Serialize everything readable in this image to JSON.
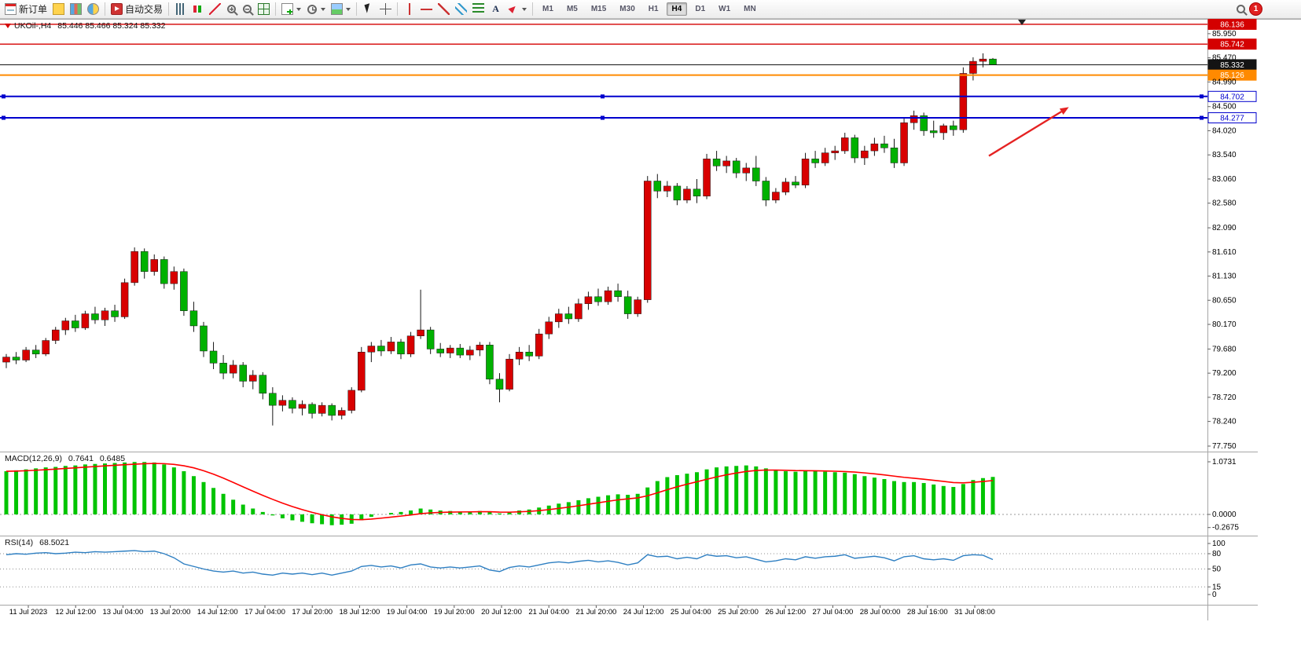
{
  "toolbar": {
    "badge": "1",
    "timeframes": [
      "M1",
      "M5",
      "M15",
      "M30",
      "H1",
      "H4",
      "D1",
      "W1",
      "MN"
    ],
    "active_timeframe": "H4",
    "buttons": [
      {
        "name": "new-order",
        "label": "新订单"
      },
      {
        "name": "chart-profile"
      },
      {
        "name": "market-watch"
      },
      {
        "name": "navigator"
      },
      {
        "type": "sep"
      },
      {
        "name": "autotrade",
        "label": "自动交易"
      },
      {
        "type": "sep"
      },
      {
        "name": "bar-chart"
      },
      {
        "name": "candlestick-chart"
      },
      {
        "name": "line-chart"
      },
      {
        "name": "zoom-in"
      },
      {
        "name": "zoom-out"
      },
      {
        "name": "tile-windows"
      },
      {
        "type": "sep"
      },
      {
        "name": "new-chart",
        "caret": true
      },
      {
        "name": "periods",
        "caret": true
      },
      {
        "name": "templates",
        "caret": true
      },
      {
        "type": "sep"
      },
      {
        "name": "cursor"
      },
      {
        "name": "crosshair"
      },
      {
        "type": "sep"
      },
      {
        "name": "vertical-line"
      },
      {
        "name": "horizontal-line"
      },
      {
        "name": "trendline"
      },
      {
        "name": "equidistant-channel"
      },
      {
        "name": "fibonacci"
      },
      {
        "name": "text",
        "glyph": "A"
      },
      {
        "name": "arrows",
        "caret": true
      },
      {
        "type": "sep"
      }
    ]
  },
  "chart_data": {
    "type": "candlestick",
    "title": "UKOil-,H4",
    "ohlc_text": "85.446 85.466 85.324 85.332",
    "ohlc": {
      "open": "85.446",
      "high": "85.466",
      "low": "85.324",
      "close": "85.332"
    },
    "ylim": [
      77.64,
      86.23
    ],
    "x_range": "11 Jul 2023 - 31 Jul 2023",
    "grid": false,
    "colors": {
      "up": "#d80000",
      "down": "#00b100",
      "wick": "#161616",
      "macd_hist": "#00c400",
      "macd_signal": "#ff0000",
      "rsi": "#2e7fc2",
      "frame": "#a6a6a6",
      "axis_text": "#000000"
    },
    "price_ticks": [
      "85.950",
      "85.470",
      "84.990",
      "84.500",
      "84.020",
      "83.540",
      "83.060",
      "82.580",
      "82.090",
      "81.610",
      "81.130",
      "80.650",
      "80.170",
      "79.680",
      "79.200",
      "78.720",
      "78.240",
      "77.750"
    ],
    "levels": [
      {
        "name": "resistance-line-86136",
        "price": 86.136,
        "label": "86.136",
        "color": "#d40000",
        "tag": "filled",
        "width": 1.4,
        "handles": false
      },
      {
        "name": "resistance-line-85742",
        "price": 85.742,
        "label": "85.742",
        "color": "#d40000",
        "tag": "filled",
        "width": 1.4,
        "handles": false
      },
      {
        "name": "current-price-line",
        "price": 85.332,
        "label": "85.332",
        "color": "#141414",
        "tag": "filled",
        "width": 1,
        "handles": false
      },
      {
        "name": "orange-level-line",
        "price": 85.126,
        "label": "85.126",
        "color": "#ff8a00",
        "tag": "filled",
        "width": 2,
        "handles": false
      },
      {
        "name": "support-line-84702",
        "price": 84.702,
        "label": "84.702",
        "color": "#0000cd",
        "tag": "outline",
        "width": 2,
        "handles": true
      },
      {
        "name": "support-line-84277",
        "price": 84.277,
        "label": "84.277",
        "color": "#0000cd",
        "tag": "outline",
        "width": 2,
        "handles": true
      }
    ],
    "time_labels": [
      "11 Jul 2023",
      "12 Jul 12:00",
      "13 Jul 04:00",
      "13 Jul 20:00",
      "14 Jul 12:00",
      "17 Jul 04:00",
      "17 Jul 20:00",
      "18 Jul 12:00",
      "19 Jul 04:00",
      "19 Jul 20:00",
      "20 Jul 12:00",
      "21 Jul 04:00",
      "21 Jul 20:00",
      "24 Jul 12:00",
      "25 Jul 04:00",
      "25 Jul 20:00",
      "26 Jul 12:00",
      "27 Jul 04:00",
      "28 Jul 00:00",
      "28 Jul 16:00",
      "31 Jul 08:00"
    ],
    "candles": [
      [
        79.42,
        79.58,
        79.3,
        79.52
      ],
      [
        79.52,
        79.62,
        79.38,
        79.46
      ],
      [
        79.46,
        79.72,
        79.42,
        79.66
      ],
      [
        79.66,
        79.76,
        79.5,
        79.58
      ],
      [
        79.58,
        79.9,
        79.54,
        79.85
      ],
      [
        79.85,
        80.12,
        79.78,
        80.06
      ],
      [
        80.06,
        80.3,
        79.96,
        80.24
      ],
      [
        80.24,
        80.36,
        80.02,
        80.1
      ],
      [
        80.1,
        80.44,
        80.06,
        80.38
      ],
      [
        80.38,
        80.52,
        80.18,
        80.26
      ],
      [
        80.26,
        80.5,
        80.14,
        80.44
      ],
      [
        80.44,
        80.56,
        80.22,
        80.32
      ],
      [
        80.32,
        81.08,
        80.28,
        81.0
      ],
      [
        81.0,
        81.7,
        80.94,
        81.62
      ],
      [
        81.62,
        81.68,
        81.08,
        81.22
      ],
      [
        81.22,
        81.56,
        81.14,
        81.46
      ],
      [
        81.46,
        81.52,
        80.88,
        80.98
      ],
      [
        80.98,
        81.32,
        80.86,
        81.22
      ],
      [
        81.22,
        81.28,
        80.34,
        80.44
      ],
      [
        80.44,
        80.62,
        80.02,
        80.14
      ],
      [
        80.14,
        80.22,
        79.52,
        79.64
      ],
      [
        79.64,
        79.82,
        79.28,
        79.4
      ],
      [
        79.4,
        79.56,
        79.08,
        79.2
      ],
      [
        79.2,
        79.46,
        79.1,
        79.36
      ],
      [
        79.36,
        79.42,
        78.92,
        79.04
      ],
      [
        79.04,
        79.26,
        78.88,
        79.16
      ],
      [
        79.16,
        79.22,
        78.68,
        78.8
      ],
      [
        78.8,
        78.92,
        78.16,
        78.56
      ],
      [
        78.56,
        78.76,
        78.44,
        78.66
      ],
      [
        78.66,
        78.72,
        78.4,
        78.5
      ],
      [
        78.5,
        78.66,
        78.36,
        78.58
      ],
      [
        78.58,
        78.62,
        78.3,
        78.4
      ],
      [
        78.4,
        78.62,
        78.34,
        78.56
      ],
      [
        78.56,
        78.6,
        78.26,
        78.36
      ],
      [
        78.36,
        78.52,
        78.28,
        78.46
      ],
      [
        78.46,
        78.92,
        78.4,
        78.86
      ],
      [
        78.86,
        79.72,
        78.82,
        79.62
      ],
      [
        79.62,
        79.82,
        79.42,
        79.74
      ],
      [
        79.74,
        79.86,
        79.54,
        79.64
      ],
      [
        79.64,
        79.92,
        79.58,
        79.82
      ],
      [
        79.82,
        79.88,
        79.48,
        79.58
      ],
      [
        79.58,
        80.02,
        79.52,
        79.94
      ],
      [
        79.94,
        80.86,
        79.88,
        80.06
      ],
      [
        80.06,
        80.12,
        79.58,
        79.68
      ],
      [
        79.68,
        79.8,
        79.52,
        79.6
      ],
      [
        79.6,
        79.76,
        79.5,
        79.7
      ],
      [
        79.7,
        79.78,
        79.5,
        79.56
      ],
      [
        79.56,
        79.74,
        79.46,
        79.66
      ],
      [
        79.66,
        79.82,
        79.54,
        79.76
      ],
      [
        79.76,
        79.82,
        78.98,
        79.08
      ],
      [
        79.08,
        79.2,
        78.62,
        78.88
      ],
      [
        78.88,
        79.58,
        78.84,
        79.48
      ],
      [
        79.48,
        79.72,
        79.36,
        79.62
      ],
      [
        79.62,
        79.76,
        79.44,
        79.54
      ],
      [
        79.54,
        80.08,
        79.48,
        79.98
      ],
      [
        79.98,
        80.32,
        79.88,
        80.22
      ],
      [
        80.22,
        80.48,
        80.1,
        80.38
      ],
      [
        80.38,
        80.52,
        80.18,
        80.28
      ],
      [
        80.28,
        80.68,
        80.22,
        80.58
      ],
      [
        80.58,
        80.82,
        80.46,
        80.72
      ],
      [
        80.72,
        80.88,
        80.54,
        80.62
      ],
      [
        80.62,
        80.92,
        80.56,
        80.84
      ],
      [
        80.84,
        80.98,
        80.62,
        80.72
      ],
      [
        80.72,
        80.84,
        80.28,
        80.38
      ],
      [
        80.38,
        80.72,
        80.32,
        80.66
      ],
      [
        80.66,
        83.12,
        80.6,
        83.02
      ],
      [
        83.02,
        83.16,
        82.68,
        82.82
      ],
      [
        82.82,
        83.02,
        82.7,
        82.92
      ],
      [
        82.92,
        82.98,
        82.54,
        82.64
      ],
      [
        82.64,
        82.92,
        82.58,
        82.86
      ],
      [
        82.86,
        83.06,
        82.58,
        82.72
      ],
      [
        82.72,
        83.56,
        82.66,
        83.46
      ],
      [
        83.46,
        83.62,
        83.22,
        83.32
      ],
      [
        83.32,
        83.52,
        83.18,
        83.42
      ],
      [
        83.42,
        83.48,
        83.08,
        83.18
      ],
      [
        83.18,
        83.38,
        83.02,
        83.28
      ],
      [
        83.28,
        83.52,
        82.92,
        83.02
      ],
      [
        83.02,
        83.1,
        82.52,
        82.64
      ],
      [
        82.64,
        82.88,
        82.58,
        82.8
      ],
      [
        82.8,
        83.08,
        82.74,
        83.0
      ],
      [
        83.0,
        83.12,
        82.88,
        82.94
      ],
      [
        82.94,
        83.58,
        82.88,
        83.46
      ],
      [
        83.46,
        83.62,
        83.28,
        83.38
      ],
      [
        83.38,
        83.68,
        83.32,
        83.58
      ],
      [
        83.58,
        83.72,
        83.44,
        83.62
      ],
      [
        83.62,
        83.98,
        83.56,
        83.88
      ],
      [
        83.88,
        83.94,
        83.38,
        83.48
      ],
      [
        83.48,
        83.72,
        83.34,
        83.62
      ],
      [
        83.62,
        83.88,
        83.52,
        83.76
      ],
      [
        83.76,
        83.92,
        83.58,
        83.68
      ],
      [
        83.68,
        83.86,
        83.28,
        83.38
      ],
      [
        83.38,
        84.28,
        83.32,
        84.18
      ],
      [
        84.18,
        84.42,
        84.04,
        84.32
      ],
      [
        84.32,
        84.38,
        83.92,
        84.02
      ],
      [
        84.02,
        84.22,
        83.88,
        83.98
      ],
      [
        83.98,
        84.16,
        83.84,
        84.12
      ],
      [
        84.12,
        84.22,
        83.92,
        84.04
      ],
      [
        84.04,
        85.28,
        83.98,
        85.16
      ],
      [
        85.16,
        85.48,
        85.02,
        85.4
      ],
      [
        85.4,
        85.56,
        85.28,
        85.446
      ],
      [
        85.446,
        85.466,
        85.324,
        85.332
      ]
    ],
    "macd": {
      "label": "MACD(12,26,9)",
      "value_main": "0.7641",
      "value_signal": "0.6485",
      "axis_labels": [
        "1.0731",
        "0.0000",
        "-0.2675"
      ],
      "values": [
        0.88,
        0.9,
        0.92,
        0.94,
        0.96,
        0.97,
        0.99,
        1.0,
        1.02,
        1.03,
        1.04,
        1.05,
        1.06,
        1.07,
        1.07,
        1.06,
        1.02,
        0.96,
        0.88,
        0.78,
        0.66,
        0.54,
        0.42,
        0.3,
        0.2,
        0.12,
        0.05,
        -0.02,
        -0.08,
        -0.12,
        -0.15,
        -0.18,
        -0.2,
        -0.22,
        -0.21,
        -0.19,
        -0.12,
        -0.05,
        0.0,
        0.03,
        0.05,
        0.08,
        0.12,
        0.1,
        0.08,
        0.07,
        0.06,
        0.06,
        0.07,
        0.05,
        0.02,
        0.04,
        0.08,
        0.1,
        0.14,
        0.18,
        0.22,
        0.25,
        0.29,
        0.33,
        0.36,
        0.39,
        0.41,
        0.4,
        0.42,
        0.55,
        0.68,
        0.76,
        0.8,
        0.83,
        0.86,
        0.92,
        0.96,
        0.98,
        0.99,
        1.0,
        0.98,
        0.94,
        0.9,
        0.88,
        0.87,
        0.89,
        0.88,
        0.87,
        0.86,
        0.85,
        0.82,
        0.78,
        0.75,
        0.72,
        0.68,
        0.66,
        0.66,
        0.64,
        0.61,
        0.58,
        0.56,
        0.62,
        0.7,
        0.74,
        0.7641
      ]
    },
    "rsi": {
      "label": "RSI(14)",
      "value": "68.5021",
      "axis_labels": [
        "100",
        "80",
        "50",
        "15",
        "0"
      ],
      "dotted_levels": [
        80,
        50,
        15
      ],
      "values": [
        78,
        80,
        79,
        81,
        82,
        80,
        81,
        83,
        82,
        84,
        83,
        84,
        85,
        86,
        84,
        85,
        80,
        72,
        60,
        55,
        50,
        46,
        44,
        46,
        42,
        44,
        40,
        38,
        42,
        40,
        42,
        39,
        42,
        38,
        42,
        46,
        55,
        57,
        54,
        56,
        52,
        58,
        60,
        54,
        52,
        54,
        52,
        54,
        56,
        48,
        45,
        53,
        56,
        54,
        58,
        62,
        64,
        62,
        65,
        67,
        64,
        66,
        63,
        58,
        62,
        78,
        74,
        75,
        70,
        73,
        70,
        78,
        75,
        76,
        72,
        74,
        69,
        64,
        66,
        70,
        68,
        74,
        71,
        74,
        75,
        78,
        71,
        73,
        75,
        72,
        66,
        74,
        76,
        70,
        68,
        70,
        67,
        76,
        78,
        77,
        68.5
      ]
    },
    "arrow": {
      "from_index": 99.6,
      "from_price": 83.52,
      "to_index": 107.7,
      "to_price": 84.49,
      "color": "#e52222"
    }
  }
}
